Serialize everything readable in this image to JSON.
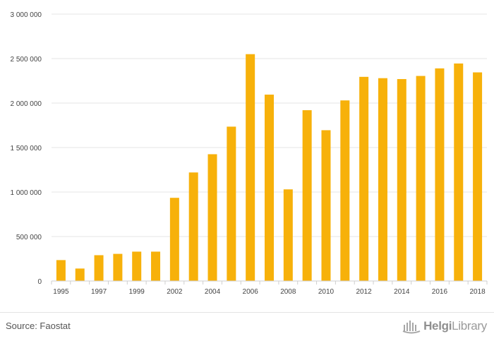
{
  "chart_data": {
    "type": "bar",
    "categories": [
      "1995",
      "1996",
      "1997",
      "1998",
      "1999",
      "2000",
      "2002",
      "2003",
      "2004",
      "2005",
      "2006",
      "2007",
      "2008",
      "2009",
      "2010",
      "2011",
      "2012",
      "2013",
      "2014",
      "2015",
      "2016",
      "2017",
      "2018"
    ],
    "x_tick_labels": [
      "1995",
      "",
      "1997",
      "",
      "1999",
      "",
      "2002",
      "",
      "2004",
      "",
      "2006",
      "",
      "2008",
      "",
      "2010",
      "",
      "2012",
      "",
      "2014",
      "",
      "2016",
      "",
      "2018"
    ],
    "values": [
      235000,
      140000,
      290000,
      305000,
      330000,
      330000,
      935000,
      1220000,
      1425000,
      1735000,
      2550000,
      2095000,
      1030000,
      1920000,
      1695000,
      2030000,
      2295000,
      2280000,
      2270000,
      2305000,
      2390000,
      2445000,
      2345000
    ],
    "title": "",
    "xlabel": "",
    "ylabel": "",
    "ylim": [
      0,
      3000000
    ],
    "y_ticks": [
      {
        "value": 0,
        "label": "0"
      },
      {
        "value": 500000,
        "label": "500 000"
      },
      {
        "value": 1000000,
        "label": "1 000 000"
      },
      {
        "value": 1500000,
        "label": "1 500 000"
      },
      {
        "value": 2000000,
        "label": "2 000 000"
      },
      {
        "value": 2500000,
        "label": "2 500 000"
      },
      {
        "value": 3000000,
        "label": "3 000 000"
      }
    ],
    "grid": true,
    "bar_color": "#f7b10a"
  },
  "footer": {
    "source": "Source: Faostat",
    "brand_bold": "Helgi",
    "brand_rest": "Library"
  },
  "brand_icon": "helgilibrary-logo-icon"
}
